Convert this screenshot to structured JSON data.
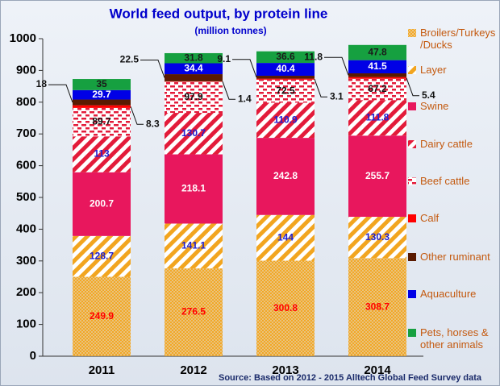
{
  "chart_data": {
    "type": "stacked_bar",
    "title": "World feed output, by protein line",
    "subtitle": "(million tonnes)",
    "source": "Source:  Based on 2012 - 2015 Alltech Global Feed Survey data",
    "categories": [
      "2011",
      "2012",
      "2013",
      "2014"
    ],
    "ylim": [
      0,
      1000
    ],
    "yticks": [
      0,
      100,
      200,
      300,
      400,
      500,
      600,
      700,
      800,
      900,
      1000
    ],
    "grid": false,
    "legend": "right",
    "series": [
      {
        "name": "Broilers/Turkeys /Ducks",
        "color": "#f2a51f",
        "pattern": "dots",
        "label_color": "#ff0000",
        "values": [
          249.9,
          276.5,
          300.8,
          308.7
        ]
      },
      {
        "name": "Layer",
        "color": "#f2a51f",
        "pattern": "diagonal",
        "label_color": "#1f1fd0",
        "values": [
          128.7,
          141.1,
          144,
          130.3
        ]
      },
      {
        "name": "Swine",
        "color": "#e8175d",
        "pattern": "solid",
        "label_color": "#ffffff",
        "values": [
          200.7,
          218.1,
          242.8,
          255.7
        ]
      },
      {
        "name": "Dairy cattle",
        "color": "#e31b3a",
        "pattern": "diagonal",
        "label_color": "#1f1fd0",
        "values": [
          113,
          130.7,
          110.9,
          111.8
        ]
      },
      {
        "name": "Beef cattle",
        "color": "#e31b3a",
        "pattern": "dash",
        "label_color": "#111111",
        "values": [
          89.7,
          97.9,
          72.5,
          67.2
        ]
      },
      {
        "name": "Calf",
        "color": "#ff0000",
        "pattern": "solid",
        "label_color": "#111111",
        "callout": "right",
        "values": [
          8.3,
          1.4,
          3.1,
          5.4
        ]
      },
      {
        "name": "Other ruminant",
        "color": "#5a1a00",
        "pattern": "solid",
        "label_color": "#111111",
        "callout": "left",
        "values": [
          18,
          22.5,
          9.1,
          11.8
        ]
      },
      {
        "name": "Aquaculture",
        "color": "#0000e6",
        "pattern": "solid",
        "label_color": "#ffffff",
        "values": [
          29.7,
          34.4,
          40.4,
          41.5
        ]
      },
      {
        "name": "Pets, horses & other animals",
        "color": "#16a040",
        "pattern": "solid",
        "label_color": "#1a1a1a",
        "values": [
          35,
          31.8,
          36.6,
          47.8
        ]
      }
    ]
  }
}
